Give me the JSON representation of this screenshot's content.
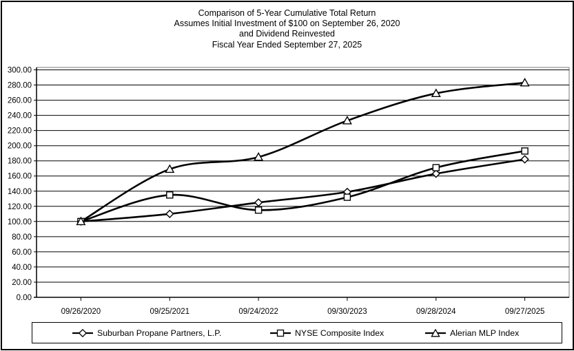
{
  "title": {
    "line1": "Comparison of 5-Year Cumulative Total Return",
    "line2": "Assumes Initial Investment of $100 on September 26, 2020",
    "line3": "and Dividend Reinvested",
    "line4": "Fiscal Year Ended September 27, 2025"
  },
  "chart_data": {
    "type": "line",
    "line_shape": "smooth",
    "x": [
      "09/26/2020",
      "09/25/2021",
      "09/24/2022",
      "09/30/2023",
      "09/28/2024",
      "09/27/2025"
    ],
    "series": [
      {
        "name": "Suburban Propane Partners, L.P.",
        "marker": "diamond",
        "values": [
          100.0,
          110.0,
          125.0,
          139.0,
          163.0,
          182.0
        ]
      },
      {
        "name": "NYSE Composite Index",
        "marker": "square",
        "values": [
          100.0,
          135.0,
          115.0,
          132.0,
          171.0,
          193.0
        ]
      },
      {
        "name": "Alerian MLP Index",
        "marker": "triangle",
        "values": [
          100.0,
          169.0,
          185.0,
          233.0,
          269.0,
          283.0
        ]
      }
    ],
    "ylim": [
      0,
      300
    ],
    "ytick_step": 20,
    "yticks": [
      "0.00",
      "20.00",
      "40.00",
      "60.00",
      "80.00",
      "100.00",
      "120.00",
      "140.00",
      "160.00",
      "180.00",
      "200.00",
      "220.00",
      "240.00",
      "260.00",
      "280.00",
      "300.00"
    ],
    "grid": "horizontal",
    "legend_position": "bottom",
    "colors": {
      "line": "#000000",
      "marker_fill": "#ffffff",
      "plot_border": "#909090",
      "background": "#ffffff",
      "text": "#000000"
    }
  }
}
